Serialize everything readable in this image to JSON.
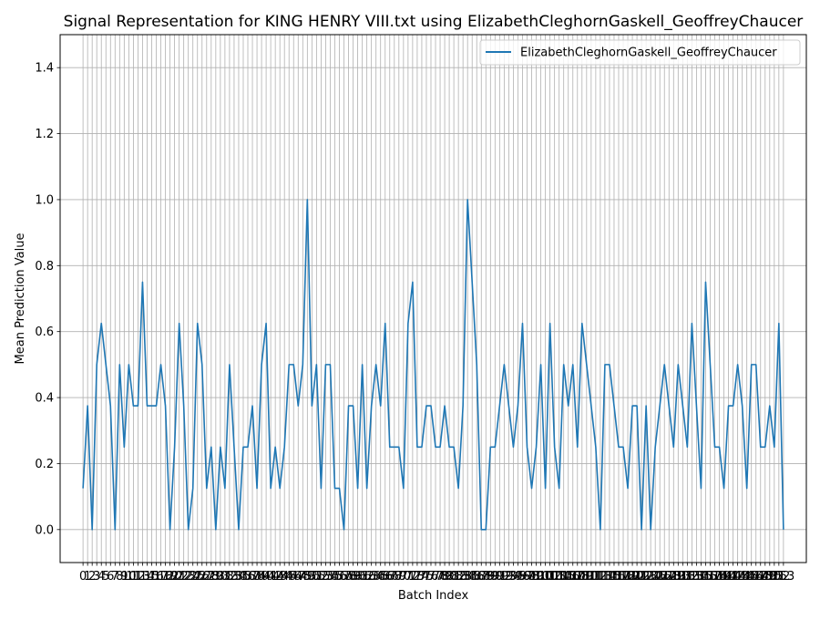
{
  "chart_data": {
    "type": "line",
    "title": "Signal Representation for KING HENRY VIII.txt using ElizabethCleghornGaskell_GeoffreyChaucer",
    "xlabel": "Batch Index",
    "ylabel": "Mean Prediction Value",
    "xlim": [
      -5,
      158
    ],
    "ylim": [
      -0.1,
      1.5
    ],
    "yticks": [
      0.0,
      0.2,
      0.4,
      0.6,
      0.8,
      1.0,
      1.2,
      1.4
    ],
    "yticks_text": [
      "0.0",
      "0.2",
      "0.4",
      "0.6",
      "0.8",
      "1.0",
      "1.2",
      "1.4"
    ],
    "grid": true,
    "legend_position": "top-right",
    "x": [
      0,
      1,
      2,
      3,
      4,
      5,
      6,
      7,
      8,
      9,
      10,
      11,
      12,
      13,
      14,
      15,
      16,
      17,
      18,
      19,
      20,
      21,
      22,
      23,
      24,
      25,
      26,
      27,
      28,
      29,
      30,
      31,
      32,
      33,
      34,
      35,
      36,
      37,
      38,
      39,
      40,
      41,
      42,
      43,
      44,
      45,
      46,
      47,
      48,
      49,
      50,
      51,
      52,
      53,
      54,
      55,
      56,
      57,
      58,
      59,
      60,
      61,
      62,
      63,
      64,
      65,
      66,
      67,
      68,
      69,
      70,
      71,
      72,
      73,
      74,
      75,
      76,
      77,
      78,
      79,
      80,
      81,
      82,
      83,
      84,
      85,
      86,
      87,
      88,
      89,
      90,
      91,
      92,
      93,
      94,
      95,
      96,
      97,
      98,
      99,
      100,
      101,
      102,
      103,
      104,
      105,
      106,
      107,
      108,
      109,
      110,
      111,
      112,
      113,
      114,
      115,
      116,
      117,
      118,
      119,
      120,
      121,
      122,
      123,
      124,
      125,
      126,
      127,
      128,
      129,
      130,
      131,
      132,
      133,
      134,
      135,
      136,
      137,
      138,
      139,
      140,
      141,
      142,
      143,
      144,
      145,
      146,
      147,
      148,
      149,
      150,
      151,
      152,
      153
    ],
    "xtick_labels": [
      "0",
      "1",
      "2",
      "3",
      "4",
      "5",
      "6",
      "7",
      "8",
      "9",
      "10",
      "11",
      "12",
      "13",
      "14",
      "15",
      "16",
      "17",
      "18",
      "19",
      "20",
      "21",
      "22",
      "23",
      "24",
      "25",
      "26",
      "27",
      "28",
      "29",
      "30",
      "31",
      "32",
      "33",
      "34",
      "35",
      "36",
      "37",
      "38",
      "39",
      "40",
      "41",
      "42",
      "43",
      "44",
      "45",
      "46",
      "47",
      "48",
      "49",
      "50",
      "51",
      "52",
      "53",
      "54",
      "55",
      "56",
      "57",
      "58",
      "59",
      "60",
      "61",
      "62",
      "63",
      "64",
      "65",
      "66",
      "67",
      "68",
      "69",
      "70",
      "71",
      "72",
      "73",
      "74",
      "75",
      "76",
      "77",
      "78",
      "79",
      "80",
      "81",
      "82",
      "83",
      "84",
      "85",
      "86",
      "87",
      "88",
      "89",
      "90",
      "91",
      "92",
      "93",
      "94",
      "95",
      "96",
      "97",
      "98",
      "99",
      "100",
      "101",
      "102",
      "103",
      "104",
      "105",
      "106",
      "107",
      "108",
      "109",
      "110",
      "111",
      "112",
      "113",
      "114",
      "115",
      "116",
      "117",
      "118",
      "119",
      "120",
      "121",
      "122",
      "123",
      "124",
      "125",
      "126",
      "127",
      "128",
      "129",
      "130",
      "131",
      "132",
      "133",
      "134",
      "135",
      "136",
      "137",
      "138",
      "139",
      "140",
      "141",
      "142",
      "143",
      "144",
      "145",
      "146",
      "147",
      "148",
      "149",
      "150",
      "151",
      "152",
      "153"
    ],
    "series": [
      {
        "name": "ElizabethCleghornGaskell_GeoffreyChaucer",
        "color": "#1f77b4",
        "values": [
          0.125,
          0.375,
          0,
          0.5,
          0.625,
          0.5,
          0.375,
          0,
          0.5,
          0.25,
          0.5,
          0.375,
          0.375,
          0.75,
          0.375,
          0.375,
          0.375,
          0.5,
          0.375,
          0,
          0.25,
          0.625,
          0.375,
          0,
          0.125,
          0.625,
          0.5,
          0.125,
          0.25,
          0,
          0.25,
          0.125,
          0.5,
          0.25,
          0,
          0.25,
          0.25,
          0.375,
          0.125,
          0.5,
          0.625,
          0.125,
          0.25,
          0.125,
          0.25,
          0.5,
          0.5,
          0.375,
          0.5,
          1.0,
          0.375,
          0.5,
          0.125,
          0.5,
          0.5,
          0.125,
          0.125,
          0,
          0.375,
          0.375,
          0.125,
          0.5,
          0.125,
          0.375,
          0.5,
          0.375,
          0.625,
          0.25,
          0.25,
          0.25,
          0.125,
          0.625,
          0.75,
          0.25,
          0.25,
          0.375,
          0.375,
          0.25,
          0.25,
          0.375,
          0.25,
          0.25,
          0.125,
          0.375,
          1.0,
          0.75,
          0.5,
          0,
          0,
          0.25,
          0.25,
          0.375,
          0.5,
          0.375,
          0.25,
          0.375,
          0.625,
          0.25,
          0.125,
          0.25,
          0.5,
          0.125,
          0.625,
          0.25,
          0.125,
          0.5,
          0.375,
          0.5,
          0.25,
          0.625,
          0.5,
          0.375,
          0.25,
          0,
          0.5,
          0.5,
          0.375,
          0.25,
          0.25,
          0.125,
          0.375,
          0.375,
          0,
          0.375,
          0,
          0.25,
          0.375,
          0.5,
          0.375,
          0.25,
          0.5,
          0.375,
          0.25,
          0.625,
          0.375,
          0.125,
          0.75,
          0.5,
          0.25,
          0.25,
          0.125,
          0.375,
          0.375,
          0.5,
          0.375,
          0.125,
          0.5,
          0.5,
          0.25,
          0.25,
          0.375,
          0.25,
          0.625,
          0
        ]
      }
    ]
  }
}
